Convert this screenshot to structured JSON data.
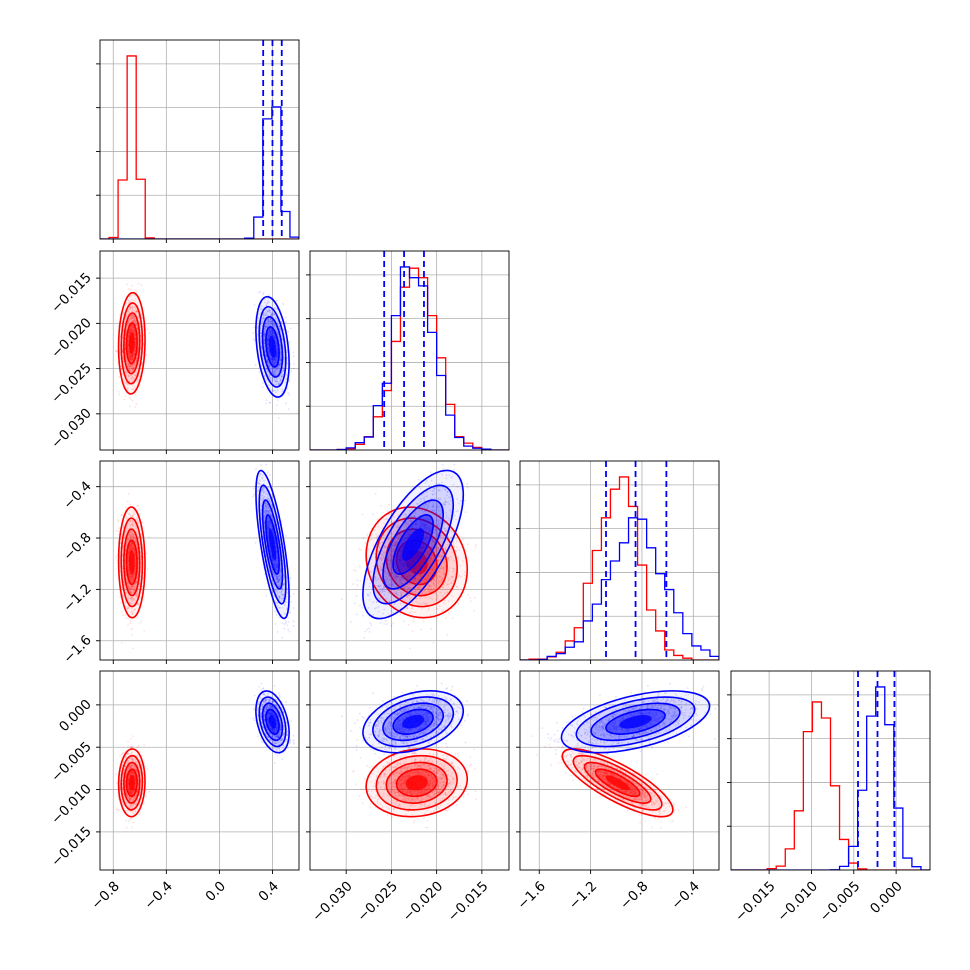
{
  "colors": {
    "series_a": "#ff0000",
    "series_b": "#0000ff",
    "grid": "#b0b0b0",
    "frame": "#000000",
    "background": "#ffffff"
  },
  "chart_data": {
    "type": "scatter",
    "layout": "corner plot (4x4 lower-triangular), 1D histograms on diagonal, 2D scatter with density contours below",
    "series": [
      {
        "name": "",
        "color": "#ff0000",
        "means": {
          "p1": -0.66,
          "p2": -0.0222,
          "p3": -0.99,
          "p4": -0.0092
        },
        "stds": {
          "p1": 0.04,
          "p2": 0.0022,
          "p3": 0.17,
          "p4": 0.0016
        }
      },
      {
        "name": "",
        "color": "#0000ff",
        "means": {
          "p1": 0.4,
          "p2": -0.0226,
          "p3": -0.85,
          "p4": -0.002
        },
        "stds": {
          "p1": 0.05,
          "p2": 0.0022,
          "p3": 0.21,
          "p4": 0.0014
        },
        "quantile_lines": {
          "p1": [
            0.33,
            0.4,
            0.47
          ],
          "p2": [
            -0.0258,
            -0.0236,
            -0.0214
          ],
          "p3": [
            -1.08,
            -0.85,
            -0.61
          ],
          "p4": [
            -0.0045,
            -0.0022,
            -0.0002
          ]
        }
      }
    ],
    "correlations": {
      "series_a": {
        "p1_p2": 0.05,
        "p1_p3": 0.0,
        "p2_p3": -0.15,
        "p1_p4": 0.0,
        "p2_p4": 0.0,
        "p3_p4": -0.8
      },
      "series_b": {
        "p1_p2": -0.3,
        "p1_p3": -0.6,
        "p2_p3": 0.55,
        "p1_p4": 0.0,
        "p2_p4": 0.0,
        "p3_p4": 0.45
      }
    },
    "axes": {
      "p1": {
        "range": [
          -0.9,
          0.6
        ],
        "ticks": [
          "-0.8",
          "-0.4",
          "0.0",
          "0.4"
        ]
      },
      "p2": {
        "range": [
          -0.034,
          -0.012
        ],
        "ticks": [
          "-0.030",
          "-0.025",
          "-0.020",
          "-0.015"
        ]
      },
      "p3": {
        "range": [
          -1.75,
          -0.2
        ],
        "ticks": [
          "-1.6",
          "-1.2",
          "-0.8",
          "-0.4"
        ]
      },
      "p4": {
        "range": [
          -0.0195,
          0.004
        ],
        "ticks": [
          "-0.015",
          "-0.010",
          "-0.005",
          "0.000"
        ]
      }
    },
    "tick_values": {
      "p1": [
        -0.8,
        -0.4,
        0.0,
        0.4
      ],
      "p2": [
        -0.03,
        -0.025,
        -0.02,
        -0.015
      ],
      "p3": [
        -1.6,
        -1.2,
        -0.8,
        -0.4
      ],
      "p4": [
        -0.015,
        -0.01,
        -0.005,
        0.0
      ]
    },
    "grid": true,
    "xlabel": "",
    "ylabel": "",
    "title": ""
  }
}
